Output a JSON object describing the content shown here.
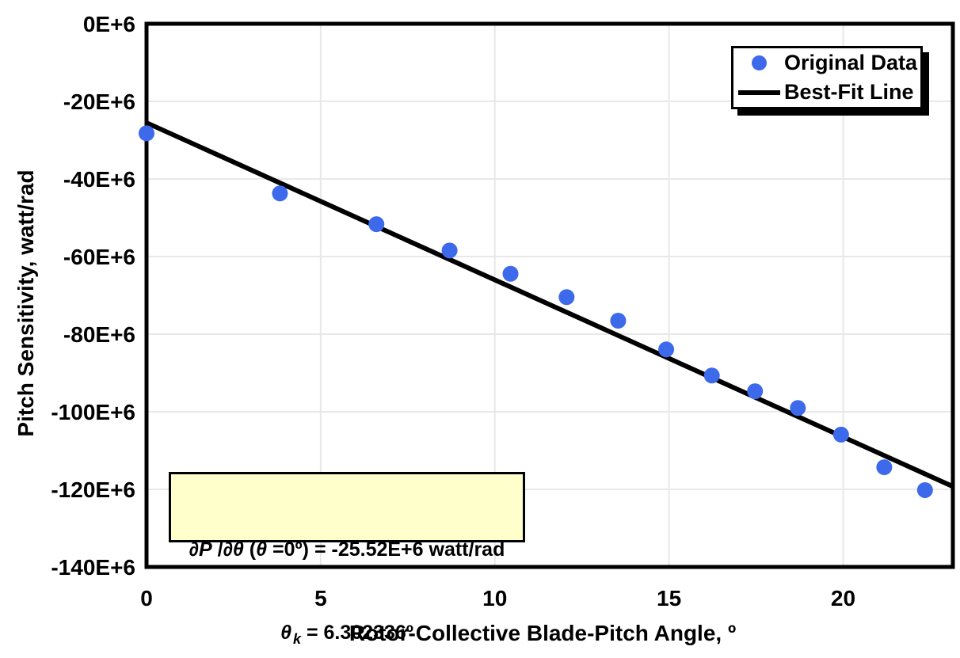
{
  "colors": {
    "background": "#FFFFFF",
    "point_fill": "#3D69EB",
    "fit_line": "#000000",
    "grid": "#E8E8E8",
    "frame": "#000000",
    "legend_bg": "#FFFFFF",
    "legend_shadow": "#000000",
    "annotation_bg": "#FFFFCC",
    "annotation_border": "#000000"
  },
  "chart_data": {
    "type": "scatter",
    "title": "",
    "xlabel": "Rotor-Collective Blade-Pitch Angle, º",
    "ylabel": "Pitch Sensitivity, watt/rad",
    "xlim_deg": [
      0,
      23.15
    ],
    "x_ticks": [
      0,
      5,
      10,
      15,
      20
    ],
    "x_tick_labels": [
      "0",
      "5",
      "10",
      "15",
      "20"
    ],
    "ylim_E6": [
      -140,
      0
    ],
    "y_ticks_E6": [
      0,
      -20,
      -40,
      -60,
      -80,
      -100,
      -120,
      -140
    ],
    "y_tick_labels": [
      "0E+6",
      "-20E+6",
      "-40E+6",
      "-60E+6",
      "-80E+6",
      "-100E+6",
      "-120E+6",
      "-140E+6"
    ],
    "grid": true,
    "legend_position": "top-right",
    "series": [
      {
        "name": "Original Data",
        "type": "scatter",
        "color": "#3D69EB",
        "x_deg": [
          0.0,
          3.83,
          6.6,
          8.7,
          10.45,
          12.06,
          13.54,
          14.92,
          16.23,
          17.47,
          18.7,
          19.94,
          21.18,
          22.35
        ],
        "y_watt_per_rad_E6": [
          -28.24,
          -43.73,
          -51.66,
          -58.44,
          -64.44,
          -70.46,
          -76.53,
          -83.94,
          -90.67,
          -94.71,
          -99.04,
          -105.9,
          -114.3,
          -120.2
        ]
      },
      {
        "name": "Best-Fit Line",
        "type": "line",
        "color": "#000000",
        "fit": {
          "pitch_sensitivity_at_0deg_E6": -25.52,
          "theta_k_deg": 6.302336
        },
        "x_range_deg": [
          0,
          23.15
        ]
      }
    ],
    "annotation": {
      "line1": "∂P /∂θ (θ =0º) = -25.52E+6 watt/rad",
      "line2": "θ k = 6.302336º",
      "l1_s1": "∂P",
      "l1_s2": " /",
      "l1_s3": "∂θ",
      "l1_s4": " (",
      "l1_s5": "θ",
      "l1_s6": " =0º) = -25.52E+6 watt/rad",
      "l2_s1": "θ",
      "l2_s2": "k",
      "l2_s3": " = 6.302336º"
    }
  }
}
